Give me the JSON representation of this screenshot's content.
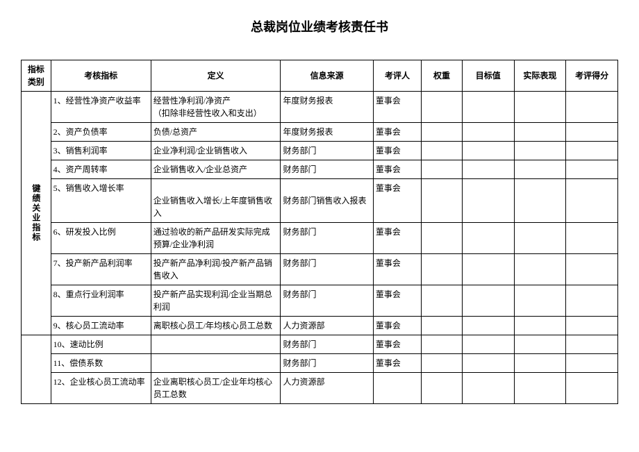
{
  "title": "总裁岗位业绩考核责任书",
  "headers": {
    "category": "指标类别",
    "indicator": "考核指标",
    "definition": "定义",
    "source": "信息来源",
    "evaluator": "考评人",
    "weight": "权重",
    "target": "目标值",
    "actual": "实际表现",
    "score": "考评得分"
  },
  "category_label": "键绩关业指标",
  "rows": [
    {
      "indicator": "1、经营性净资产收益率",
      "definition": "经营性净利润/净资产\n（扣除非经营性收入和支出）",
      "source": "年度财务报表",
      "evaluator": "董事会"
    },
    {
      "indicator": "2、资产负债率",
      "definition": "负债/总资产",
      "source": "年度财务报表",
      "evaluator": "董事会"
    },
    {
      "indicator": "3、销售利润率",
      "definition": "企业净利润/企业销售收入",
      "source": "财务部门",
      "evaluator": "董事会"
    },
    {
      "indicator": "4、资产周转率",
      "definition": "企业销售收入/企业总资产",
      "source": "财务部门",
      "evaluator": "董事会"
    },
    {
      "indicator": "5、销售收入增长率",
      "definition": "\n企业销售收入增长/上年度销售收入",
      "source": "\n财务部门销售收入报表",
      "evaluator": "董事会"
    },
    {
      "indicator": "6、研发投入比例",
      "definition": "通过验收的新产品研发实际完成预算/企业净利润",
      "source": "财务部门",
      "evaluator": "董事会"
    },
    {
      "indicator": "7、投产新产品利润率",
      "definition": "投产新产品净利润/投产新产品销售收入",
      "source": "财务部门",
      "evaluator": "董事会"
    },
    {
      "indicator": "8、重点行业利润率",
      "definition": "投产新产品实现利润/企业当期总利润",
      "source": "财务部门",
      "evaluator": "董事会"
    },
    {
      "indicator": "9、核心员工流动率",
      "definition": "离职核心员工/年均核心员工总数",
      "source": "人力资源部",
      "evaluator": "董事会"
    },
    {
      "indicator": "10、速动比例",
      "definition": "",
      "source": "财务部门",
      "evaluator": "董事会"
    },
    {
      "indicator": "11、偿债系数",
      "definition": "",
      "source": "财务部门",
      "evaluator": "董事会"
    },
    {
      "indicator": "12、企业核心员工流动率",
      "definition": "企业离职核心员工/企业年均核心员工总数",
      "source": "人力资源部",
      "evaluator": ""
    }
  ],
  "colors": {
    "background": "#ffffff",
    "text": "#000000",
    "border": "#000000"
  },
  "fonts": {
    "title_size": 18,
    "body_size": 12,
    "family": "SimSun"
  }
}
